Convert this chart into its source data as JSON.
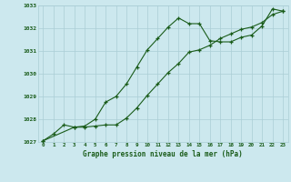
{
  "title": "Graphe pression niveau de la mer (hPa)",
  "bg_color": "#cce8ee",
  "grid_color": "#aacdd5",
  "line_color": "#1a5c1a",
  "ylim": [
    1027,
    1033
  ],
  "yticks": [
    1027,
    1028,
    1029,
    1030,
    1031,
    1032,
    1033
  ],
  "series1_x": [
    0,
    1,
    2,
    3,
    4,
    5,
    6,
    7,
    8,
    9,
    10,
    11,
    12,
    13,
    14,
    15,
    16,
    17,
    18,
    19,
    20,
    21,
    22,
    23
  ],
  "series1_y": [
    1027.05,
    1027.35,
    1027.75,
    1027.65,
    1027.7,
    1028.0,
    1028.75,
    1029.0,
    1029.55,
    1030.3,
    1031.05,
    1031.55,
    1032.05,
    1032.45,
    1032.2,
    1032.2,
    1031.45,
    1031.4,
    1031.4,
    1031.6,
    1031.7,
    1032.1,
    1032.85,
    1032.75
  ],
  "series2_x": [
    0,
    3,
    4,
    5,
    6,
    7,
    8,
    9,
    10,
    11,
    12,
    13,
    14,
    15,
    16,
    17,
    18,
    19,
    20,
    21,
    22,
    23
  ],
  "series2_y": [
    1027.05,
    1027.65,
    1027.65,
    1027.7,
    1027.75,
    1027.75,
    1028.05,
    1028.5,
    1029.05,
    1029.55,
    1030.05,
    1030.45,
    1030.95,
    1031.05,
    1031.25,
    1031.55,
    1031.75,
    1031.95,
    1032.05,
    1032.25,
    1032.6,
    1032.75
  ]
}
